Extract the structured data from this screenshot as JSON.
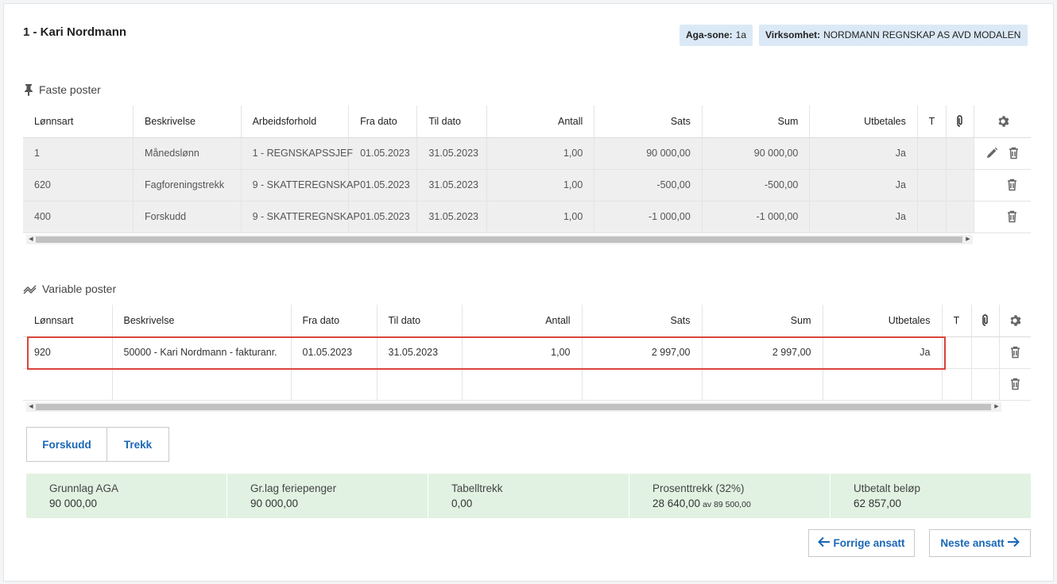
{
  "employee": {
    "title": "1 - Kari Nordmann"
  },
  "chips": {
    "aga_label": "Aga-sone:",
    "aga_value": "1a",
    "virk_label": "Virksomhet:",
    "virk_value": "NORDMANN REGNSKAP AS AVD MODALEN"
  },
  "faste": {
    "title": "Faste poster",
    "columns": [
      "Lønnsart",
      "Beskrivelse",
      "Arbeidsforhold",
      "Fra dato",
      "Til dato",
      "Antall",
      "Sats",
      "Sum",
      "Utbetales",
      "T"
    ],
    "rows": [
      {
        "lonnsart": "1",
        "beskrivelse": "Månedslønn",
        "arbeidsforhold": "1 - REGNSKAPSSJEF",
        "fra": "01.05.2023",
        "til": "31.05.2023",
        "antall": "1,00",
        "sats": "90 000,00",
        "sum": "90 000,00",
        "utbetales": "Ja"
      },
      {
        "lonnsart": "620",
        "beskrivelse": "Fagforeningstrekk",
        "arbeidsforhold": "9 - SKATTEREGNSKAP",
        "fra": "01.05.2023",
        "til": "31.05.2023",
        "antall": "1,00",
        "sats": "-500,00",
        "sum": "-500,00",
        "utbetales": "Ja"
      },
      {
        "lonnsart": "400",
        "beskrivelse": "Forskudd",
        "arbeidsforhold": "9 - SKATTEREGNSKAP",
        "fra": "01.05.2023",
        "til": "31.05.2023",
        "antall": "1,00",
        "sats": "-1 000,00",
        "sum": "-1 000,00",
        "utbetales": "Ja"
      }
    ]
  },
  "variable": {
    "title": "Variable poster",
    "columns": [
      "Lønnsart",
      "Beskrivelse",
      "Fra dato",
      "Til dato",
      "Antall",
      "Sats",
      "Sum",
      "Utbetales",
      "T"
    ],
    "rows": [
      {
        "lonnsart": "920",
        "beskrivelse": "50000 - Kari Nordmann - fakturanr.",
        "fra": "01.05.2023",
        "til": "31.05.2023",
        "antall": "1,00",
        "sats": "2 997,00",
        "sum": "2 997,00",
        "utbetales": "Ja"
      }
    ]
  },
  "buttons": {
    "forskudd": "Forskudd",
    "trekk": "Trekk"
  },
  "summary": [
    {
      "label": "Grunnlag AGA",
      "value": "90 000,00",
      "note": ""
    },
    {
      "label": "Gr.lag feriepenger",
      "value": "90 000,00",
      "note": ""
    },
    {
      "label": "Tabelltrekk",
      "value": "0,00",
      "note": ""
    },
    {
      "label": "Prosenttrekk (32%)",
      "value": "28 640,00",
      "note": "av 89 500,00"
    },
    {
      "label": "Utbetalt beløp",
      "value": "62 857,00",
      "note": ""
    }
  ],
  "nav": {
    "prev": "Forrige ansatt",
    "next": "Neste ansatt"
  },
  "icons": {
    "section_faste": "pin-icon",
    "section_variable": "chart-icon",
    "settings": "gear-icon",
    "attachment": "paperclip-icon",
    "edit": "pencil-icon",
    "delete": "trash-icon"
  }
}
